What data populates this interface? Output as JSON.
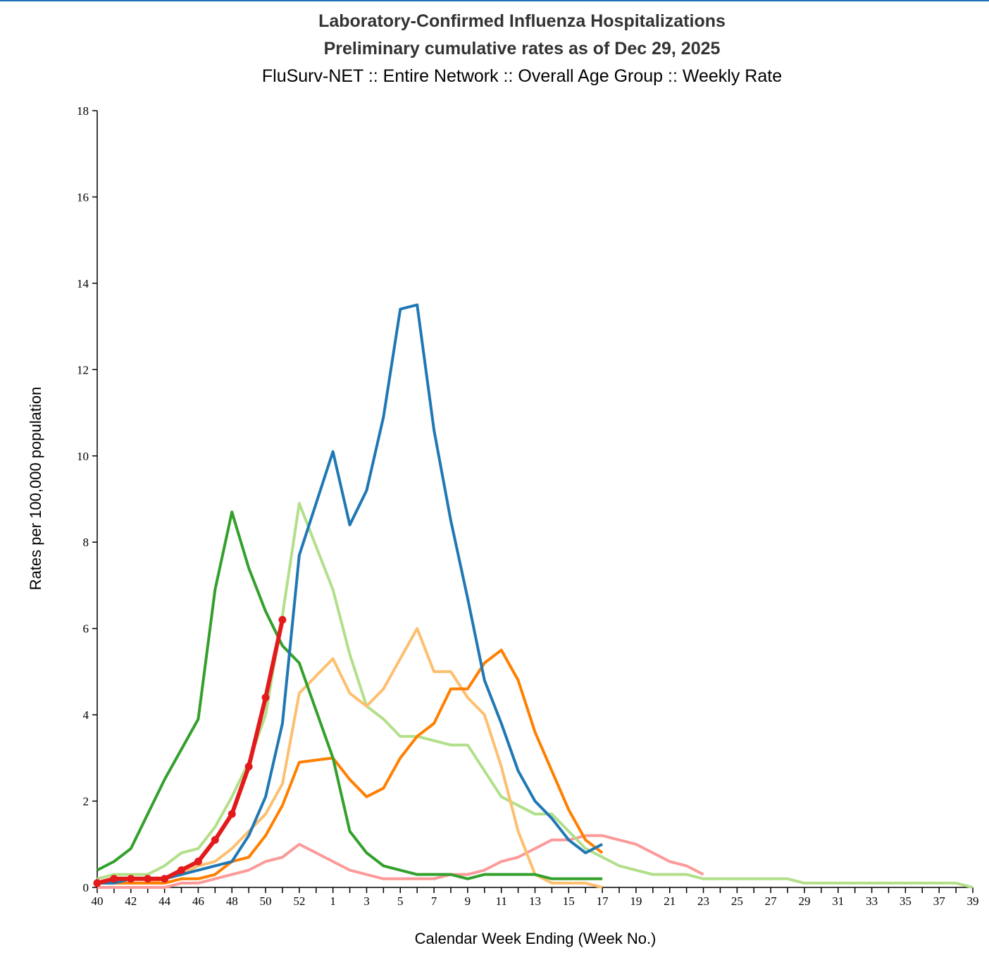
{
  "chart_data": {
    "type": "line",
    "title": "Laboratory-Confirmed Influenza Hospitalizations",
    "subtitle": "Preliminary cumulative rates as of Dec 29, 2025",
    "subtitle2": "FluSurv-NET :: Entire Network :: Overall Age Group :: Weekly Rate",
    "x_label": "Calendar Week Ending (Week No.)",
    "y_label": "Rates per 100,000 population",
    "categories": [
      40,
      null,
      42,
      null,
      44,
      null,
      46,
      null,
      48,
      null,
      50,
      null,
      52,
      null,
      1,
      null,
      3,
      null,
      5,
      null,
      7,
      null,
      9,
      null,
      11,
      null,
      13,
      null,
      15,
      null,
      17,
      null,
      19,
      null,
      21,
      null,
      23,
      null,
      25,
      null,
      27,
      null,
      29,
      null,
      31,
      null,
      33,
      null,
      35,
      null,
      37,
      null,
      39
    ],
    "ylim": [
      0,
      18
    ],
    "yticks": [
      0,
      2,
      4,
      6,
      8,
      10,
      12,
      14,
      16,
      18
    ],
    "series": [
      {
        "color": "#fb9a99",
        "width": 4,
        "values": [
          0,
          0,
          0,
          0,
          0,
          0.1,
          0.1,
          0.2,
          0.3,
          0.4,
          0.6,
          0.7,
          1.0,
          0.8,
          0.6,
          0.4,
          0.3,
          0.2,
          0.2,
          0.2,
          0.2,
          0.3,
          0.3,
          0.4,
          0.6,
          0.7,
          0.9,
          1.1,
          1.1,
          1.2,
          1.2,
          1.1,
          1.0,
          0.8,
          0.6,
          0.5,
          0.3,
          null,
          null,
          null,
          null,
          null,
          null,
          null,
          null,
          null,
          null,
          null,
          null,
          null,
          null,
          null,
          null
        ]
      },
      {
        "color": "#b2df8a",
        "width": 4,
        "values": [
          0.2,
          0.3,
          0.3,
          0.3,
          0.5,
          0.8,
          0.9,
          1.4,
          2.1,
          2.9,
          4.0,
          6.3,
          8.9,
          7.9,
          6.9,
          5.4,
          4.2,
          3.9,
          3.5,
          3.5,
          3.4,
          3.3,
          3.3,
          2.7,
          2.1,
          1.9,
          1.7,
          1.7,
          1.3,
          0.9,
          0.7,
          0.5,
          0.4,
          0.3,
          0.3,
          0.3,
          0.2,
          0.2,
          0.2,
          0.2,
          0.2,
          0.2,
          0.1,
          0.1,
          0.1,
          0.1,
          0.1,
          0.1,
          0.1,
          0.1,
          0.1,
          0.1,
          0
        ]
      },
      {
        "color": "#fdbf6f",
        "width": 4,
        "values": [
          0.1,
          0.1,
          0.1,
          0.1,
          0.2,
          0.3,
          0.5,
          0.6,
          0.9,
          1.3,
          1.7,
          2.4,
          4.5,
          4.9,
          5.3,
          4.5,
          4.2,
          4.6,
          5.3,
          6.0,
          5.0,
          5.0,
          4.4,
          4.0,
          2.8,
          1.3,
          0.3,
          0.1,
          0.1,
          0.1,
          0,
          null,
          null,
          null,
          null,
          null,
          null,
          null,
          null,
          null,
          null,
          null,
          null,
          null,
          null,
          null,
          null,
          null,
          null,
          null,
          null,
          null,
          null
        ]
      },
      {
        "color": "#ff7f00",
        "width": 4,
        "values": [
          0.1,
          0.1,
          0.1,
          0.1,
          0.1,
          0.2,
          0.2,
          0.3,
          0.6,
          0.7,
          1.2,
          1.9,
          2.9,
          2.95,
          3.0,
          2.5,
          2.1,
          2.3,
          3.0,
          3.5,
          3.8,
          4.6,
          4.6,
          5.2,
          5.5,
          4.8,
          3.6,
          2.7,
          1.8,
          1.1,
          0.8,
          null,
          null,
          null,
          null,
          null,
          null,
          null,
          null,
          null,
          null,
          null,
          null,
          null,
          null,
          null,
          null,
          null,
          null,
          null,
          null,
          null,
          null
        ]
      },
      {
        "color": "#33a02c",
        "width": 4,
        "values": [
          0.4,
          0.6,
          0.9,
          1.7,
          2.5,
          3.2,
          3.9,
          6.9,
          8.7,
          7.4,
          6.4,
          5.6,
          5.2,
          4.1,
          3.0,
          1.3,
          0.8,
          0.5,
          0.4,
          0.3,
          0.3,
          0.3,
          0.2,
          0.3,
          0.3,
          0.3,
          0.3,
          0.2,
          0.2,
          0.2,
          0.2,
          null,
          null,
          null,
          null,
          null,
          null,
          null,
          null,
          null,
          null,
          null,
          null,
          null,
          null,
          null,
          null,
          null,
          null,
          null,
          null,
          null,
          null
        ]
      },
      {
        "color": "#1f78b4",
        "width": 4,
        "values": [
          0.1,
          0.1,
          0.2,
          0.2,
          0.2,
          0.3,
          0.4,
          0.5,
          0.6,
          1.2,
          2.1,
          3.8,
          7.7,
          8.9,
          10.1,
          8.4,
          9.2,
          10.9,
          13.4,
          13.5,
          10.6,
          8.5,
          6.7,
          4.8,
          3.8,
          2.7,
          2.0,
          1.6,
          1.1,
          0.8,
          1.0,
          null,
          null,
          null,
          null,
          null,
          null,
          null,
          null,
          null,
          null,
          null,
          null,
          null,
          null,
          null,
          null,
          null,
          null,
          null,
          null,
          null,
          null
        ]
      },
      {
        "color": "#e31a1c",
        "width": 6,
        "markers": true,
        "values": [
          0.1,
          0.2,
          0.2,
          0.2,
          0.2,
          0.4,
          0.6,
          1.1,
          1.7,
          2.8,
          4.4,
          6.2,
          null,
          null,
          null,
          null,
          null,
          null,
          null,
          null,
          null,
          null,
          null,
          null,
          null,
          null,
          null,
          null,
          null,
          null,
          null,
          null,
          null,
          null,
          null,
          null,
          null,
          null,
          null,
          null,
          null,
          null,
          null,
          null,
          null,
          null,
          null,
          null,
          null,
          null,
          null,
          null,
          null
        ]
      }
    ]
  }
}
